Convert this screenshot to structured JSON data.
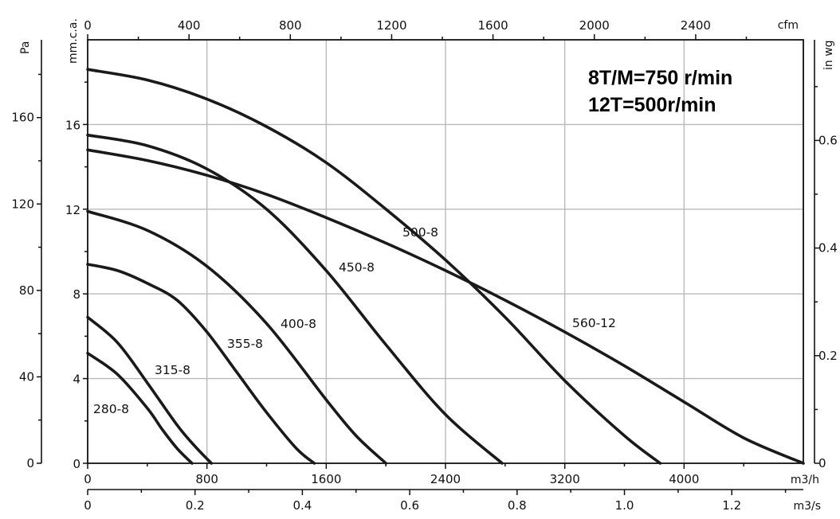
{
  "chart_data": {
    "type": "line",
    "title": "",
    "notes": [
      "8T/M=750 r/min",
      "12T=500r/min"
    ],
    "axes": {
      "x_bottom": {
        "unit": "m3/h",
        "ticks": [
          "0",
          "800",
          "1600",
          "2400",
          "3200",
          "4000"
        ],
        "range": [
          0,
          4800
        ]
      },
      "x_flow_s": {
        "unit": "m3/s",
        "ticks": [
          "0",
          "0.2",
          "0.4",
          "0.6",
          "0.8",
          "1.0",
          "1.2"
        ],
        "range": [
          0,
          1.3333
        ]
      },
      "x_top": {
        "unit": "cfm",
        "ticks": [
          "0",
          "400",
          "800",
          "1200",
          "1600",
          "2000",
          "2400"
        ],
        "range": [
          0,
          2825
        ]
      },
      "y_left_pa": {
        "unit": "Pa",
        "ticks": [
          "0",
          "40",
          "80",
          "120",
          "160"
        ],
        "range": [
          0,
          196
        ]
      },
      "y_left_mmca": {
        "unit": "mm.c.a.",
        "ticks": [
          "0",
          "4",
          "8",
          "12",
          "16"
        ],
        "range": [
          0,
          20
        ]
      },
      "y_right": {
        "unit": "in wg",
        "ticks": [
          "0",
          "0.2",
          "0.4",
          "0.6"
        ],
        "range": [
          0,
          0.787
        ]
      }
    },
    "grid": true,
    "series": [
      {
        "name": "280-8",
        "label": "280-8",
        "x": [
          0,
          200,
          400,
          500,
          600,
          700
        ],
        "y": [
          5.2,
          4.2,
          2.6,
          1.6,
          0.7,
          0
        ]
      },
      {
        "name": "315-8",
        "label": "315-8",
        "x": [
          0,
          200,
          400,
          600,
          720,
          830
        ],
        "y": [
          6.9,
          5.7,
          3.8,
          1.8,
          0.8,
          0
        ]
      },
      {
        "name": "355-8",
        "label": "355-8",
        "x": [
          0,
          200,
          400,
          600,
          800,
          1000,
          1200,
          1400,
          1520
        ],
        "y": [
          9.4,
          9.1,
          8.5,
          7.7,
          6.2,
          4.3,
          2.4,
          0.7,
          0
        ]
      },
      {
        "name": "400-8",
        "label": "400-8",
        "x": [
          0,
          400,
          800,
          1200,
          1600,
          1800,
          2000
        ],
        "y": [
          11.9,
          11.0,
          9.3,
          6.6,
          3.0,
          1.3,
          0
        ]
      },
      {
        "name": "450-8",
        "label": "450-8",
        "x": [
          0,
          400,
          800,
          1200,
          1600,
          2000,
          2400,
          2780
        ],
        "y": [
          15.5,
          15.0,
          13.9,
          12.0,
          9.1,
          5.6,
          2.3,
          0
        ]
      },
      {
        "name": "500-8",
        "label": "500-8",
        "x": [
          0,
          400,
          800,
          1200,
          1600,
          2000,
          2400,
          2800,
          3200,
          3600,
          3840
        ],
        "y": [
          18.6,
          18.1,
          17.2,
          15.9,
          14.2,
          12.0,
          9.6,
          6.9,
          3.9,
          1.3,
          0
        ]
      },
      {
        "name": "560-12",
        "label": "560-12",
        "x": [
          0,
          400,
          800,
          1200,
          1600,
          2000,
          2400,
          2800,
          3200,
          3600,
          4000,
          4400,
          4800
        ],
        "y": [
          14.8,
          14.3,
          13.6,
          12.7,
          11.6,
          10.4,
          9.1,
          7.7,
          6.2,
          4.6,
          2.9,
          1.2,
          0
        ]
      }
    ]
  }
}
